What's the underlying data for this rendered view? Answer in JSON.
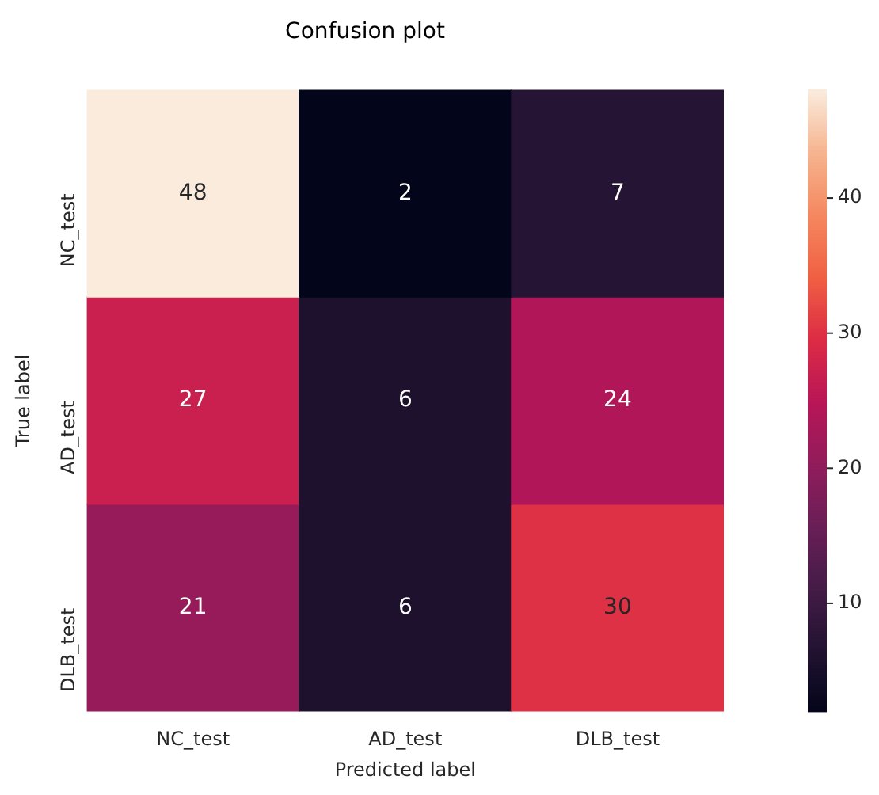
{
  "chart_data": {
    "type": "heatmap",
    "title": "Confusion plot",
    "xlabel": "Predicted label",
    "ylabel": "True label",
    "categories": [
      "NC_test",
      "AD_test",
      "DLB_test"
    ],
    "y_categories": [
      "NC_test",
      "AD_test",
      "DLB_test"
    ],
    "cells": [
      [
        48,
        2,
        7
      ],
      [
        27,
        6,
        24
      ],
      [
        21,
        6,
        30
      ]
    ],
    "clim": [
      2,
      48
    ],
    "cticks": [
      10,
      20,
      30,
      40
    ],
    "data_labels": true
  }
}
